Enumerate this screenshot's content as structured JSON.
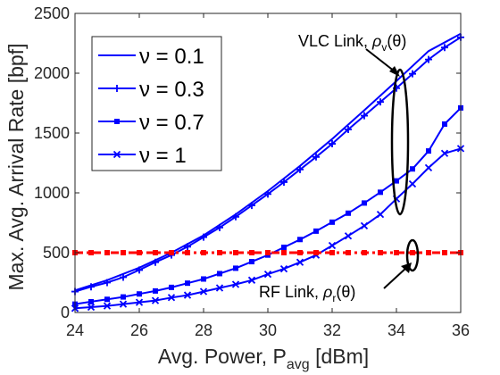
{
  "colors": {
    "vlc": "#0000ff",
    "rf": "#ff0000",
    "axis": "#262626",
    "grid": "#dcdcdc"
  },
  "chart_data": {
    "type": "line",
    "xlabel_main": "Avg. Power, P",
    "xlabel_sub": "avg",
    "xlabel_unit": " [dBm]",
    "ylabel": "Max. Avg. Arrival Rate [bpf]",
    "xlim": [
      24,
      36
    ],
    "ylim": [
      0,
      2500
    ],
    "xticks": [
      24,
      26,
      28,
      30,
      32,
      34,
      36
    ],
    "yticks": [
      0,
      500,
      1000,
      1500,
      2000,
      2500
    ],
    "grid": false,
    "legend_position": "top-left",
    "legend": [
      "ν = 0.1",
      "ν = 0.3",
      "ν = 0.7",
      "ν = 1"
    ],
    "series": [
      {
        "name": "ν = 0.1",
        "marker": "none",
        "x": [
          24,
          25,
          26,
          27,
          28,
          29,
          30,
          31,
          32,
          33,
          34,
          35,
          36
        ],
        "y": [
          185,
          270,
          375,
          500,
          645,
          820,
          1015,
          1225,
          1450,
          1690,
          1935,
          2185,
          2330
        ]
      },
      {
        "name": "ν = 0.3",
        "marker": "plus",
        "x": [
          24,
          24.5,
          25,
          25.5,
          26,
          26.5,
          27,
          27.5,
          28,
          28.5,
          29,
          29.5,
          30,
          30.5,
          31,
          31.5,
          32,
          32.5,
          33,
          33.5,
          34,
          34.5,
          35,
          35.5,
          36
        ],
        "y": [
          175,
          215,
          250,
          295,
          355,
          420,
          480,
          550,
          630,
          710,
          800,
          895,
          990,
          1090,
          1195,
          1300,
          1410,
          1530,
          1645,
          1760,
          1875,
          1995,
          2115,
          2215,
          2300
        ]
      },
      {
        "name": "ν = 0.7",
        "marker": "square",
        "x": [
          24,
          24.5,
          25,
          25.5,
          26,
          26.5,
          27,
          27.5,
          28,
          28.5,
          29,
          29.5,
          30,
          30.5,
          31,
          31.5,
          32,
          32.5,
          33,
          33.5,
          34,
          34.5,
          35,
          35.5,
          36
        ],
        "y": [
          70,
          90,
          110,
          130,
          155,
          180,
          210,
          245,
          280,
          325,
          370,
          425,
          480,
          545,
          610,
          680,
          755,
          830,
          915,
          1005,
          1100,
          1200,
          1350,
          1575,
          1710
        ]
      },
      {
        "name": "ν = 1",
        "marker": "x",
        "x": [
          24,
          24.5,
          25,
          25.5,
          26,
          26.5,
          27,
          27.5,
          28,
          28.5,
          29,
          29.5,
          30,
          30.5,
          31,
          31.5,
          32,
          32.5,
          33,
          33.5,
          34,
          34.5,
          35,
          35.5,
          36
        ],
        "y": [
          35,
          45,
          55,
          70,
          85,
          100,
          125,
          145,
          175,
          205,
          235,
          270,
          320,
          365,
          420,
          480,
          560,
          640,
          725,
          820,
          950,
          1075,
          1210,
          1330,
          1370
        ]
      },
      {
        "name": "",
        "group": "rf",
        "x": [
          24,
          36
        ],
        "y": [
          500,
          500
        ]
      }
    ],
    "annotations": {
      "vlc_text": "VLC Link, ",
      "vlc_rho": "ρ",
      "vlc_sub": "v",
      "vlc_arg": "(θ)",
      "rf_text": "RF Link, ",
      "rf_rho": "ρ",
      "rf_sub": "r",
      "rf_arg": "(θ)"
    }
  }
}
